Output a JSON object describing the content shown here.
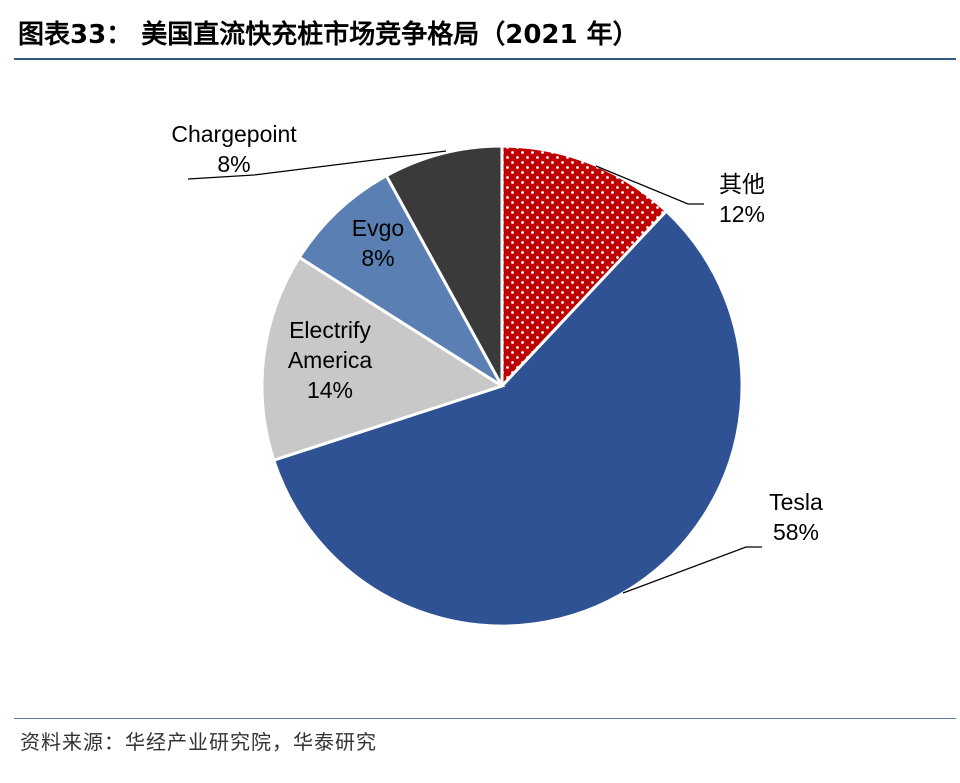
{
  "figure": {
    "title": "图表33：  美国直流快充桩市场竞争格局（2021 年）",
    "source": "资料来源：华经产业研究院，华泰研究"
  },
  "colors": {
    "tesla": "#2e5294",
    "electrify": "#c8c8c8",
    "evgo": "#5a7fb3",
    "chargepoint": "#3a3a3a",
    "other": "#c00000",
    "rule": "#2f5a87"
  },
  "chart_data": {
    "type": "pie",
    "title": "美国直流快充桩市场竞争格局（2021 年）",
    "start_angle_deg": 0,
    "direction": "clockwise",
    "slices": [
      {
        "key": "other",
        "name": "其他",
        "value": 12,
        "label": "12%",
        "pattern": "dots"
      },
      {
        "key": "tesla",
        "name": "Tesla",
        "value": 58,
        "label": "58%"
      },
      {
        "key": "electrify",
        "name": "Electrify\nAmerica",
        "value": 14,
        "label": "14%"
      },
      {
        "key": "evgo",
        "name": "Evgo",
        "value": 8,
        "label": "8%"
      },
      {
        "key": "chargepoint",
        "name": "Chargepoint",
        "value": 8,
        "label": "8%"
      }
    ]
  }
}
